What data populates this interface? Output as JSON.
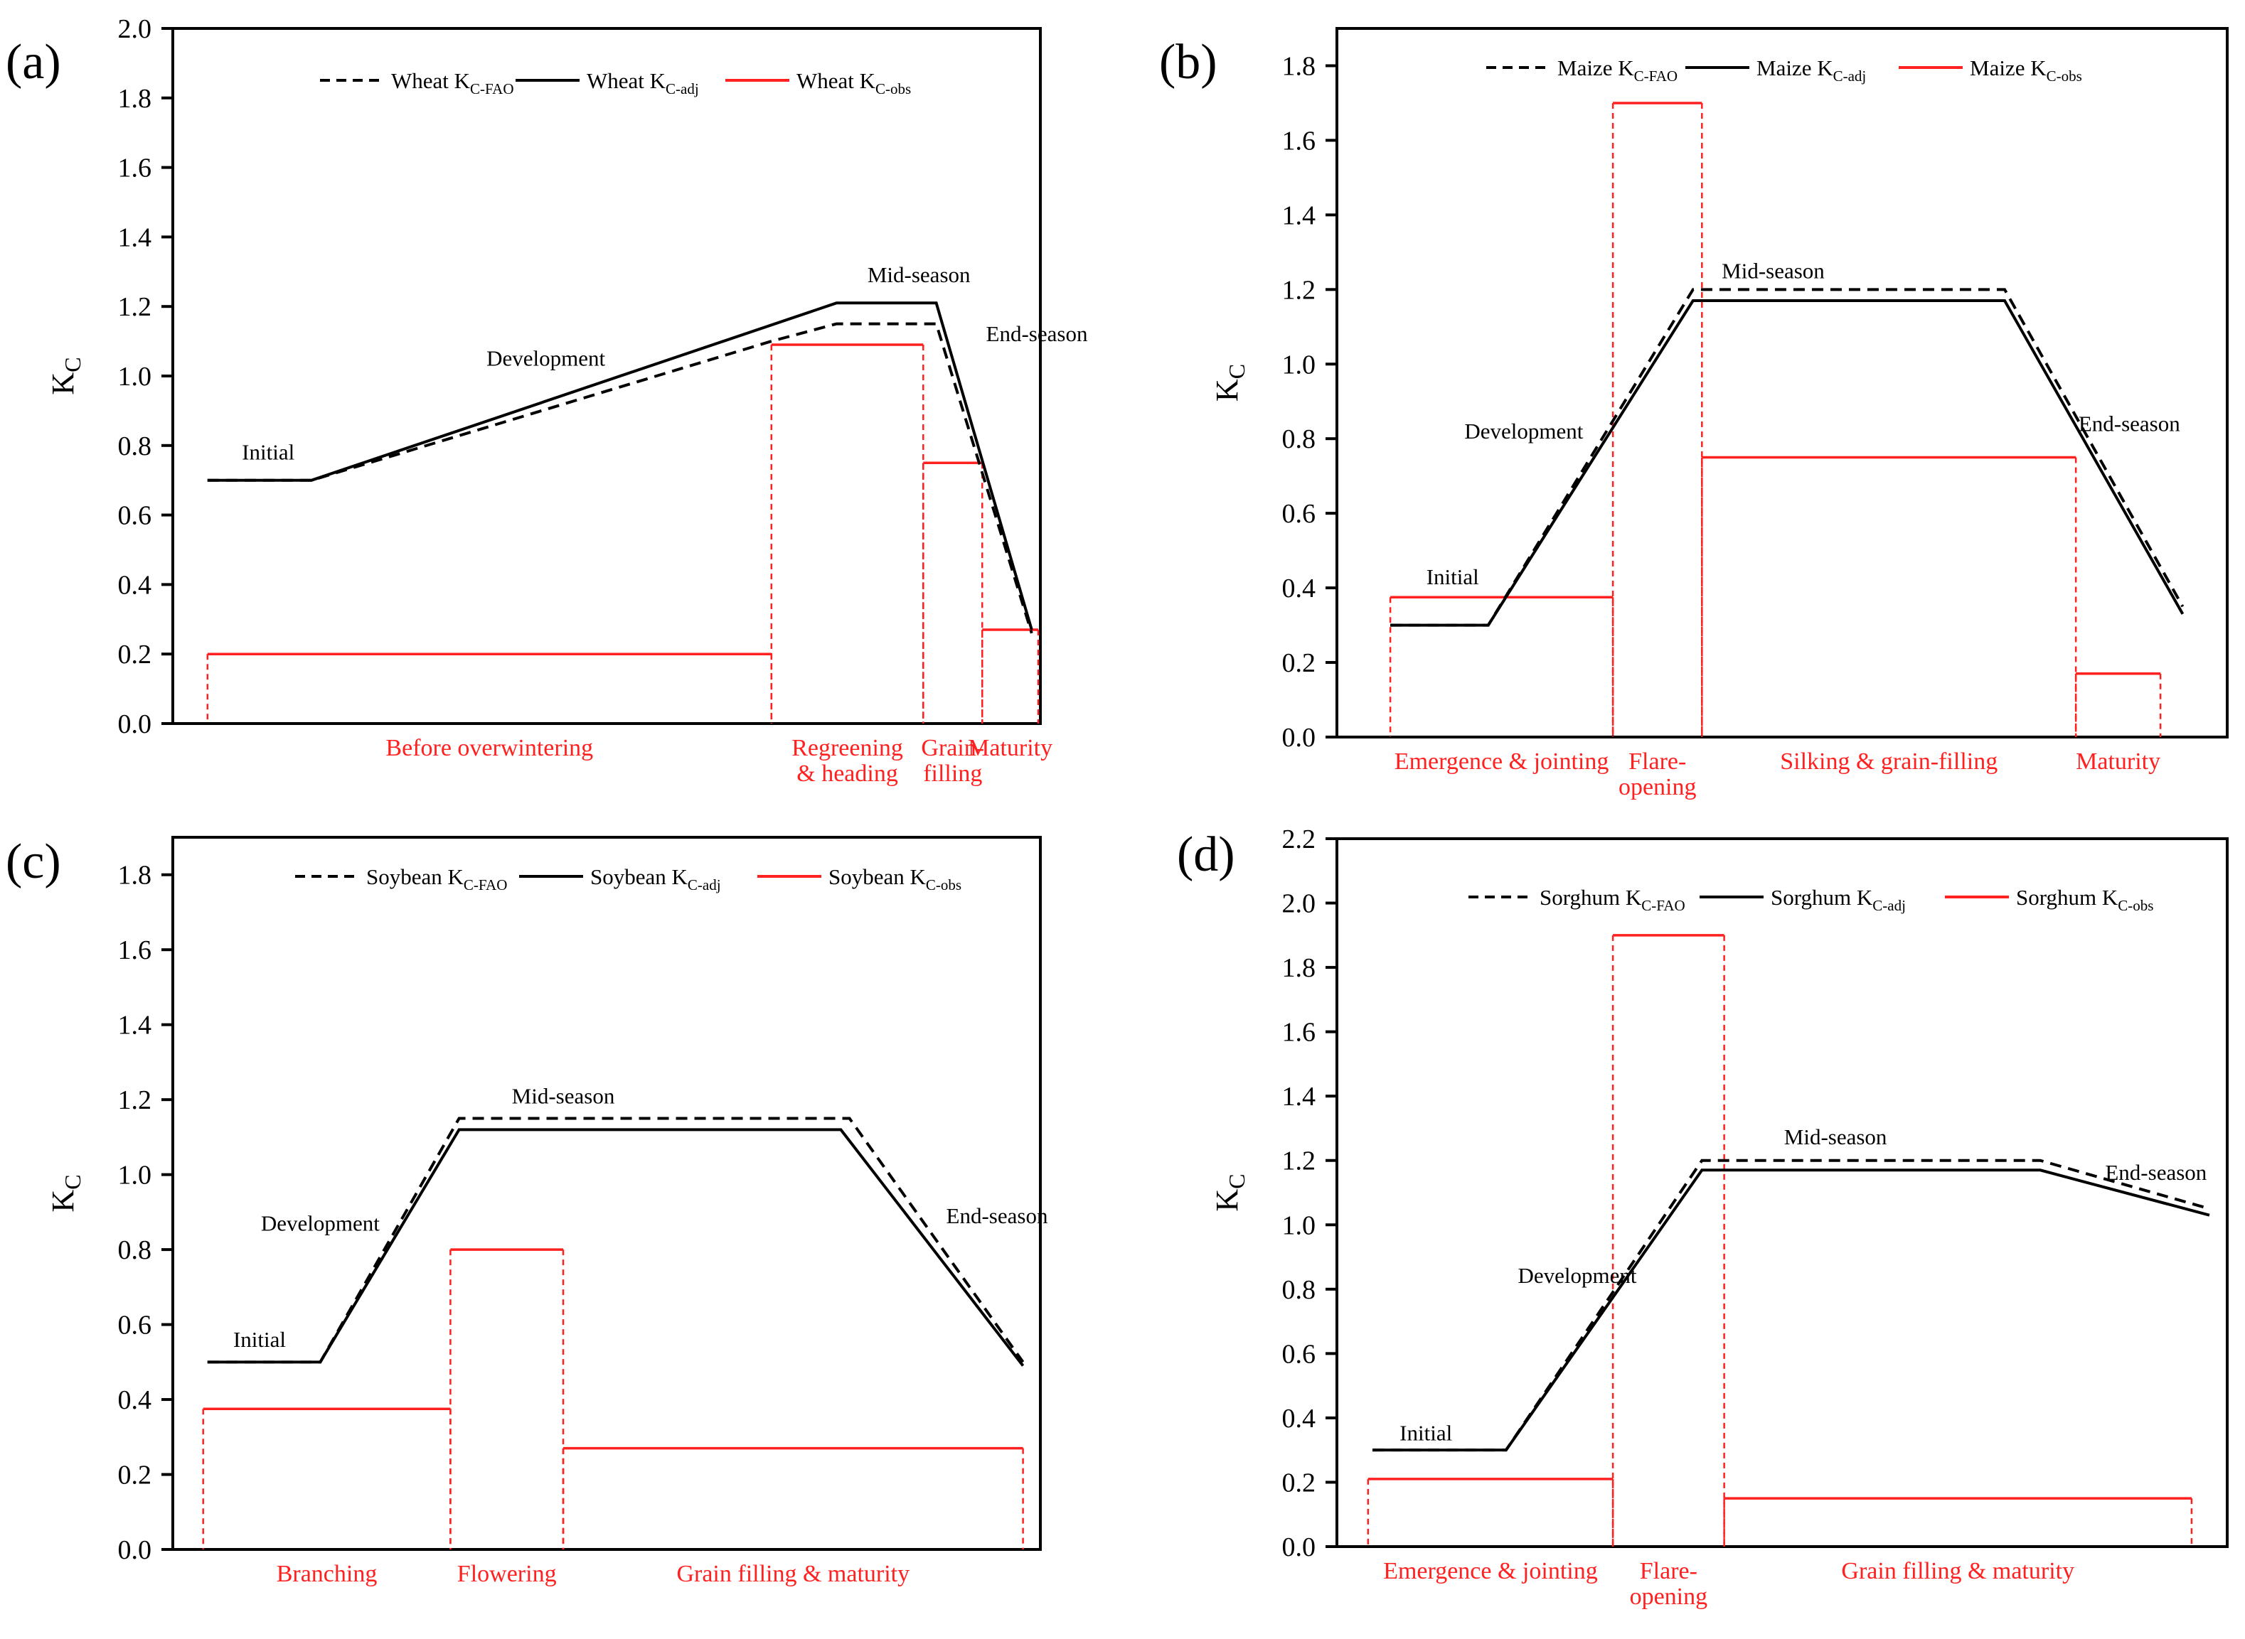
{
  "colors": {
    "fao": "#000000",
    "adj": "#000000",
    "obs": "#ff2020",
    "axis": "#000000"
  },
  "legend": {
    "fao_suffix": "C-FAO",
    "adj_suffix": "C-adj",
    "obs_suffix": "C-obs",
    "k": "K"
  },
  "ylabel": {
    "main": "K",
    "sub": "C"
  },
  "chart_data": [
    {
      "panel": "(a)",
      "type": "line",
      "crop": "Wheat",
      "legend": [
        "Wheat K C-FAO",
        "Wheat K C-adj",
        "Wheat K C-obs"
      ],
      "ylim": [
        0,
        2.0
      ],
      "yticks": [
        "0.0",
        "0.2",
        "0.4",
        "0.6",
        "0.8",
        "1.0",
        "1.2",
        "1.4",
        "1.6",
        "1.8",
        "2.0"
      ],
      "xlim": [
        0,
        100
      ],
      "series": [
        {
          "name": "Wheat K C-FAO",
          "style": "dashed",
          "x": [
            4,
            16,
            69,
            76.5,
            88,
            99
          ],
          "y": [
            0.7,
            0.7,
            1.1,
            1.15,
            1.15,
            0.26
          ]
        },
        {
          "name": "Wheat K C-adj",
          "style": "solid",
          "x": [
            4,
            16,
            76.5,
            88,
            99
          ],
          "y": [
            0.7,
            0.7,
            1.21,
            1.21,
            0.27
          ]
        }
      ],
      "obs_segments": [
        {
          "x0": 4,
          "x1": 69,
          "y": 0.2,
          "label": "Before overwintering"
        },
        {
          "x0": 69,
          "x1": 86.5,
          "y": 1.09,
          "label": "Regreening & heading"
        },
        {
          "x0": 86.5,
          "x1": 93.3,
          "y": 0.75,
          "label": "Grain-filling"
        },
        {
          "x0": 93.3,
          "x1": 105,
          "y": 0.27,
          "label": "Maturity"
        }
      ],
      "stages": [
        {
          "label": "Initial",
          "x": 11,
          "y": 0.76
        },
        {
          "label": "Development",
          "x": 43,
          "y": 1.03
        },
        {
          "label": "Mid-season",
          "x": 86,
          "y": 1.27
        },
        {
          "label": "End-season",
          "x": 100,
          "y": 1.1
        }
      ]
    },
    {
      "panel": "(b)",
      "type": "line",
      "crop": "Maize",
      "legend": [
        "Maize K C-FAO",
        "Maize K C-adj",
        "Maize K C-obs"
      ],
      "ylim": [
        0,
        1.9
      ],
      "yticks": [
        "0.0",
        "0.2",
        "0.4",
        "0.6",
        "0.8",
        "1.0",
        "1.2",
        "1.4",
        "1.6",
        "1.8"
      ],
      "xlim": [
        0,
        100
      ],
      "series": [
        {
          "name": "Maize K C-FAO",
          "style": "dashed",
          "x": [
            6,
            17,
            40,
            75,
            95
          ],
          "y": [
            0.3,
            0.3,
            1.2,
            1.2,
            0.35
          ]
        },
        {
          "name": "Maize K C-adj",
          "style": "solid",
          "x": [
            6,
            17,
            40,
            75,
            95
          ],
          "y": [
            0.3,
            0.3,
            1.17,
            1.17,
            0.33
          ]
        }
      ],
      "obs_segments": [
        {
          "x0": 6,
          "x1": 31,
          "y": 0.375,
          "label": "Emergence & jointing"
        },
        {
          "x0": 31,
          "x1": 41,
          "y": 1.7,
          "label": "Flare-opening"
        },
        {
          "x0": 41,
          "x1": 83,
          "y": 0.75,
          "label": "Silking & grain-filling"
        },
        {
          "x0": 83,
          "x1": 92.5,
          "y": 0.17,
          "label": "Maturity"
        }
      ],
      "stages": [
        {
          "label": "Initial",
          "x": 13,
          "y": 0.41
        },
        {
          "label": "Development",
          "x": 21,
          "y": 0.8
        },
        {
          "label": "Mid-season",
          "x": 49,
          "y": 1.23
        },
        {
          "label": "End-season",
          "x": 89,
          "y": 0.82
        }
      ]
    },
    {
      "panel": "(c)",
      "type": "line",
      "crop": "Soybean",
      "legend": [
        "Soybean K C-FAO",
        "Soybean K C-adj",
        "Soybean K C-obs"
      ],
      "ylim": [
        0,
        1.9
      ],
      "yticks": [
        "0.0",
        "0.2",
        "0.4",
        "0.6",
        "0.8",
        "1.0",
        "1.2",
        "1.4",
        "1.6",
        "1.8"
      ],
      "xlim": [
        0,
        100
      ],
      "series": [
        {
          "name": "Soybean K C-FAO",
          "style": "dashed",
          "x": [
            4,
            17,
            33,
            78,
            98
          ],
          "y": [
            0.5,
            0.5,
            1.15,
            1.15,
            0.5
          ]
        },
        {
          "name": "Soybean K C-adj",
          "style": "solid",
          "x": [
            4,
            17,
            33,
            77,
            98
          ],
          "y": [
            0.5,
            0.5,
            1.12,
            1.12,
            0.49
          ]
        }
      ],
      "obs_segments": [
        {
          "x0": 3.5,
          "x1": 32,
          "y": 0.375,
          "label": "Branching"
        },
        {
          "x0": 32,
          "x1": 45,
          "y": 0.8,
          "label": "Flowering"
        },
        {
          "x0": 45,
          "x1": 98,
          "y": 0.27,
          "label": "Grain filling & maturity"
        }
      ],
      "stages": [
        {
          "label": "Initial",
          "x": 10,
          "y": 0.54
        },
        {
          "label": "Development",
          "x": 17,
          "y": 0.85
        },
        {
          "label": "Mid-season",
          "x": 45,
          "y": 1.19
        },
        {
          "label": "End-season",
          "x": 95,
          "y": 0.87
        }
      ]
    },
    {
      "panel": "(d)",
      "type": "line",
      "crop": "Sorghum",
      "legend": [
        "Sorghum K C-FAO",
        "Sorghum K C-adj",
        "Sorghum K C-obs"
      ],
      "ylim": [
        0,
        2.2
      ],
      "yticks": [
        "0.0",
        "0.2",
        "0.4",
        "0.6",
        "0.8",
        "1.0",
        "1.2",
        "1.4",
        "1.6",
        "1.8",
        "2.0",
        "2.2"
      ],
      "xlim": [
        0,
        100
      ],
      "series": [
        {
          "name": "Sorghum K C-FAO",
          "style": "dashed",
          "x": [
            4,
            19,
            41,
            79,
            98
          ],
          "y": [
            0.3,
            0.3,
            1.2,
            1.2,
            1.05
          ]
        },
        {
          "name": "Sorghum K C-adj",
          "style": "solid",
          "x": [
            4,
            19,
            41,
            79,
            98
          ],
          "y": [
            0.3,
            0.3,
            1.17,
            1.17,
            1.03
          ]
        }
      ],
      "obs_segments": [
        {
          "x0": 3.5,
          "x1": 31,
          "y": 0.21,
          "label": "Emergence & jointing"
        },
        {
          "x0": 31,
          "x1": 43.5,
          "y": 1.9,
          "label": "Flare-opening"
        },
        {
          "x0": 43.5,
          "x1": 96,
          "y": 0.15,
          "label": "Grain filling & maturity"
        }
      ],
      "stages": [
        {
          "label": "Initial",
          "x": 10,
          "y": 0.33
        },
        {
          "label": "Development",
          "x": 27,
          "y": 0.82
        },
        {
          "label": "Mid-season",
          "x": 56,
          "y": 1.25
        },
        {
          "label": "End-season",
          "x": 92,
          "y": 1.14
        }
      ]
    }
  ]
}
